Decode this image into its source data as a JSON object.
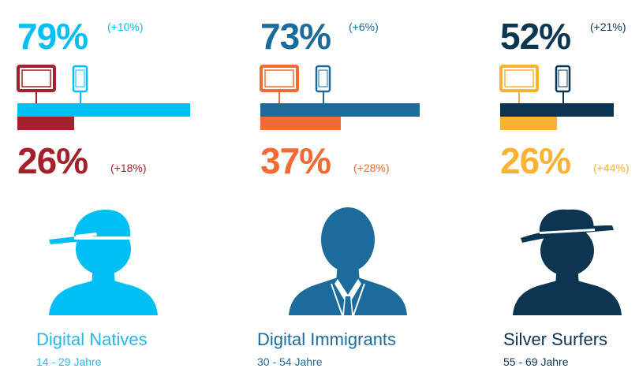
{
  "chart_data": {
    "type": "bar",
    "scale_max": 100,
    "groups": [
      {
        "name": "Digital Natives",
        "age": "14 - 29 Jahre",
        "smartphone": {
          "value": 79,
          "label": "79%",
          "delta": "(+10%)"
        },
        "tablet": {
          "value": 26,
          "label": "26%",
          "delta": "(+18%)"
        },
        "colors": {
          "smartphone": "#00bff3",
          "tablet": "#a3212c",
          "name": "#29b6e8",
          "person": "#00bff3"
        },
        "figure": "cap-icon"
      },
      {
        "name": "Digital Immigrants",
        "age": "30 - 54 Jahre",
        "smartphone": {
          "value": 73,
          "label": "73%",
          "delta": "(+6%)"
        },
        "tablet": {
          "value": 37,
          "label": "37%",
          "delta": "(+28%)"
        },
        "colors": {
          "smartphone": "#1b6b9b",
          "tablet": "#f26b35",
          "name": "#1b6b9b",
          "person": "#1b6b9b"
        },
        "figure": "suit-icon"
      },
      {
        "name": "Silver Surfers",
        "age": "55 - 69 Jahre",
        "smartphone": {
          "value": 52,
          "label": "52%",
          "delta": "(+21%)"
        },
        "tablet": {
          "value": 26,
          "label": "26%",
          "delta": "(+44%)"
        },
        "colors": {
          "smartphone": "#0b3550",
          "tablet": "#f9b233",
          "name": "#0b3550",
          "person": "#0b3550"
        },
        "figure": "hat-icon"
      }
    ]
  }
}
